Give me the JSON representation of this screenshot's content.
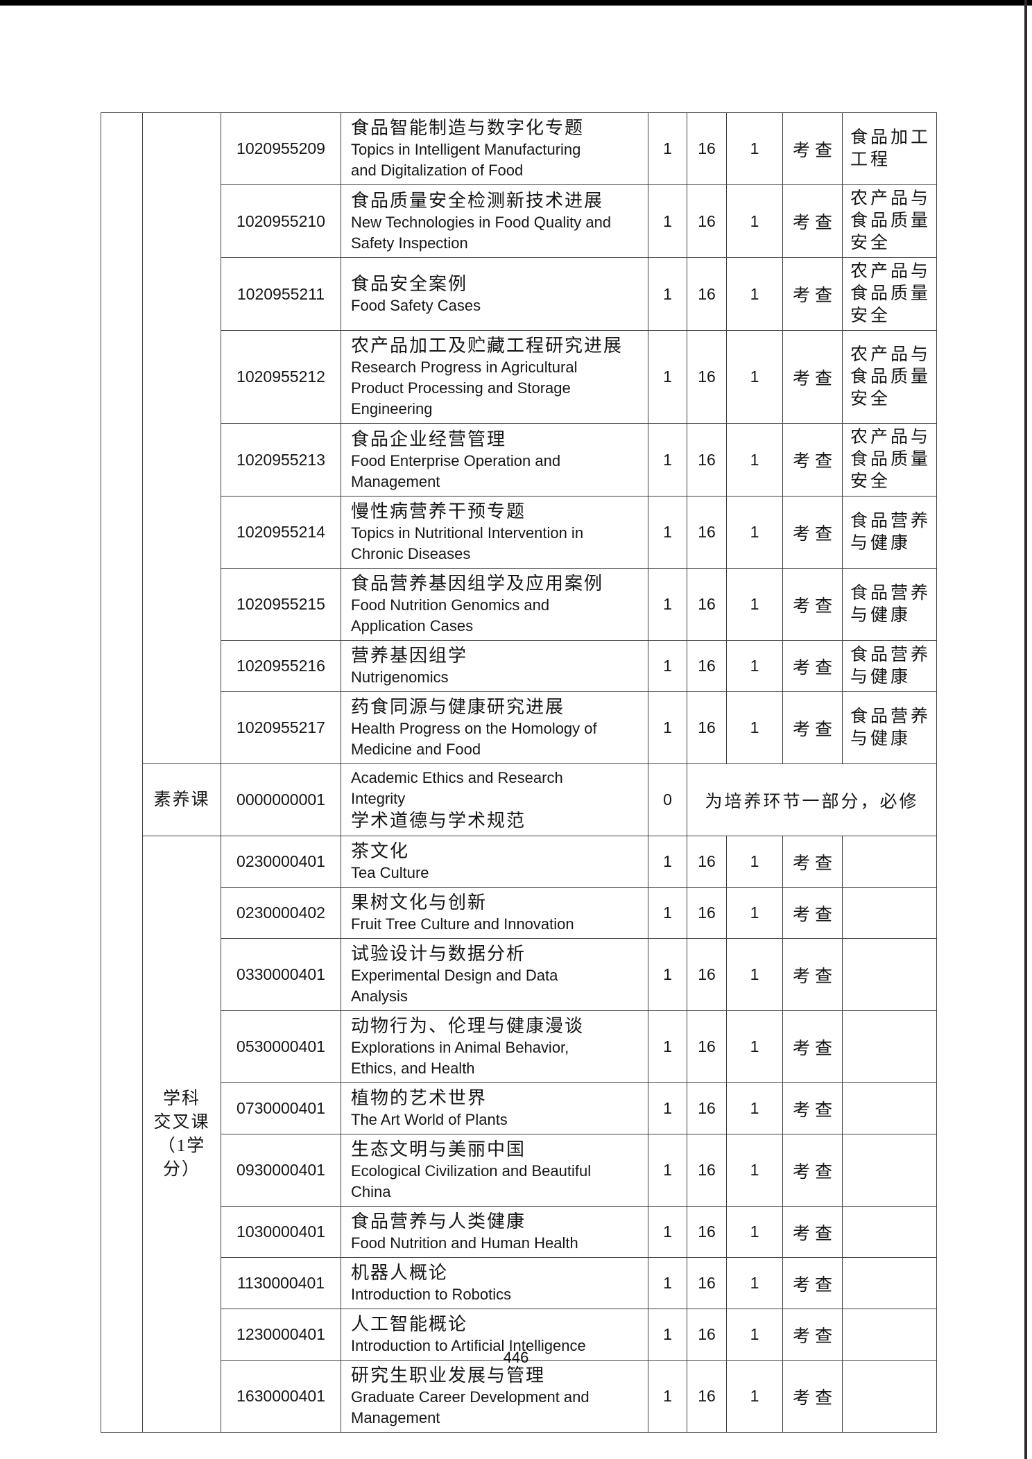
{
  "page": {
    "number": "446"
  },
  "table": {
    "row_groups": [
      {
        "span": 9,
        "label_lines": []
      },
      {
        "span": 1,
        "label_lines": [
          "素养课"
        ]
      },
      {
        "span": 10,
        "label_lines": [
          "学科",
          "交叉课",
          "（1学",
          "分）"
        ]
      }
    ],
    "courses": [
      {
        "code": "1020955209",
        "name_zh": "食品智能制造与数字化专题",
        "name_en": "Topics in Intelligent Manufacturing\nand Digitalization of Food",
        "credit": "1",
        "hours": "16",
        "semester": "1",
        "assessment": "考查",
        "category": "食品加工工程"
      },
      {
        "code": "1020955210",
        "name_zh": "食品质量安全检测新技术进展",
        "name_en": "New Technologies in Food Quality and\nSafety Inspection",
        "credit": "1",
        "hours": "16",
        "semester": "1",
        "assessment": "考查",
        "category": "农产品与食品质量安全"
      },
      {
        "code": "1020955211",
        "name_zh": "食品安全案例",
        "name_en": "Food Safety Cases",
        "credit": "1",
        "hours": "16",
        "semester": "1",
        "assessment": "考查",
        "category": "农产品与食品质量安全"
      },
      {
        "code": "1020955212",
        "name_zh": "农产品加工及贮藏工程研究进展",
        "name_en": "Research Progress in Agricultural\nProduct Processing and Storage\nEngineering",
        "credit": "1",
        "hours": "16",
        "semester": "1",
        "assessment": "考查",
        "category": "农产品与食品质量安全"
      },
      {
        "code": "1020955213",
        "name_zh": "食品企业经营管理",
        "name_en": "Food Enterprise Operation and\nManagement",
        "credit": "1",
        "hours": "16",
        "semester": "1",
        "assessment": "考查",
        "category": "农产品与食品质量安全"
      },
      {
        "code": "1020955214",
        "name_zh": "慢性病营养干预专题",
        "name_en": "Topics in Nutritional Intervention in\nChronic Diseases",
        "credit": "1",
        "hours": "16",
        "semester": "1",
        "assessment": "考查",
        "category": "食品营养与健康"
      },
      {
        "code": "1020955215",
        "name_zh": "食品营养基因组学及应用案例",
        "name_en": "Food Nutrition Genomics and\nApplication Cases",
        "credit": "1",
        "hours": "16",
        "semester": "1",
        "assessment": "考查",
        "category": "食品营养与健康"
      },
      {
        "code": "1020955216",
        "name_zh": "营养基因组学",
        "name_en": "Nutrigenomics",
        "credit": "1",
        "hours": "16",
        "semester": "1",
        "assessment": "考查",
        "category": "食品营养与健康"
      },
      {
        "code": "1020955217",
        "name_zh": "药食同源与健康研究进展",
        "name_en": "Health Progress on the Homology of\nMedicine and Food",
        "credit": "1",
        "hours": "16",
        "semester": "1",
        "assessment": "考查",
        "category": "食品营养与健康"
      },
      {
        "code": "0000000001",
        "name_en": "Academic Ethics and Research\nIntegrity",
        "name_zh": "学术道德与学术规范",
        "en_first": true,
        "credit": "0",
        "note": "为培养环节一部分，必修"
      },
      {
        "code": "0230000401",
        "name_zh": "茶文化",
        "name_en": "Tea Culture",
        "credit": "1",
        "hours": "16",
        "semester": "1",
        "assessment": "考查",
        "category": ""
      },
      {
        "code": "0230000402",
        "name_zh": "果树文化与创新",
        "name_en": "Fruit Tree Culture and Innovation",
        "credit": "1",
        "hours": "16",
        "semester": "1",
        "assessment": "考查",
        "category": ""
      },
      {
        "code": "0330000401",
        "name_zh": "试验设计与数据分析",
        "name_en": "Experimental Design and Data\nAnalysis",
        "credit": "1",
        "hours": "16",
        "semester": "1",
        "assessment": "考查",
        "category": ""
      },
      {
        "code": "0530000401",
        "name_zh": "动物行为、伦理与健康漫谈",
        "name_en": "Explorations in Animal Behavior,\nEthics, and Health",
        "credit": "1",
        "hours": "16",
        "semester": "1",
        "assessment": "考查",
        "category": ""
      },
      {
        "code": "0730000401",
        "name_zh": "植物的艺术世界",
        "name_en": "The Art World of Plants",
        "credit": "1",
        "hours": "16",
        "semester": "1",
        "assessment": "考查",
        "category": ""
      },
      {
        "code": "0930000401",
        "name_zh": "生态文明与美丽中国",
        "name_en": "Ecological Civilization and Beautiful\nChina",
        "credit": "1",
        "hours": "16",
        "semester": "1",
        "assessment": "考查",
        "category": ""
      },
      {
        "code": "1030000401",
        "name_zh": "食品营养与人类健康",
        "name_en": "Food Nutrition and Human Health",
        "credit": "1",
        "hours": "16",
        "semester": "1",
        "assessment": "考查",
        "category": ""
      },
      {
        "code": "1130000401",
        "name_zh": "机器人概论",
        "name_en": "Introduction to Robotics",
        "credit": "1",
        "hours": "16",
        "semester": "1",
        "assessment": "考查",
        "category": ""
      },
      {
        "code": "1230000401",
        "name_zh": "人工智能概论",
        "name_en": "Introduction to Artificial Intelligence",
        "credit": "1",
        "hours": "16",
        "semester": "1",
        "assessment": "考查",
        "category": ""
      },
      {
        "code": "1630000401",
        "name_zh": "研究生职业发展与管理",
        "name_en": "Graduate Career Development and\nManagement",
        "credit": "1",
        "hours": "16",
        "semester": "1",
        "assessment": "考查",
        "category": ""
      }
    ]
  }
}
